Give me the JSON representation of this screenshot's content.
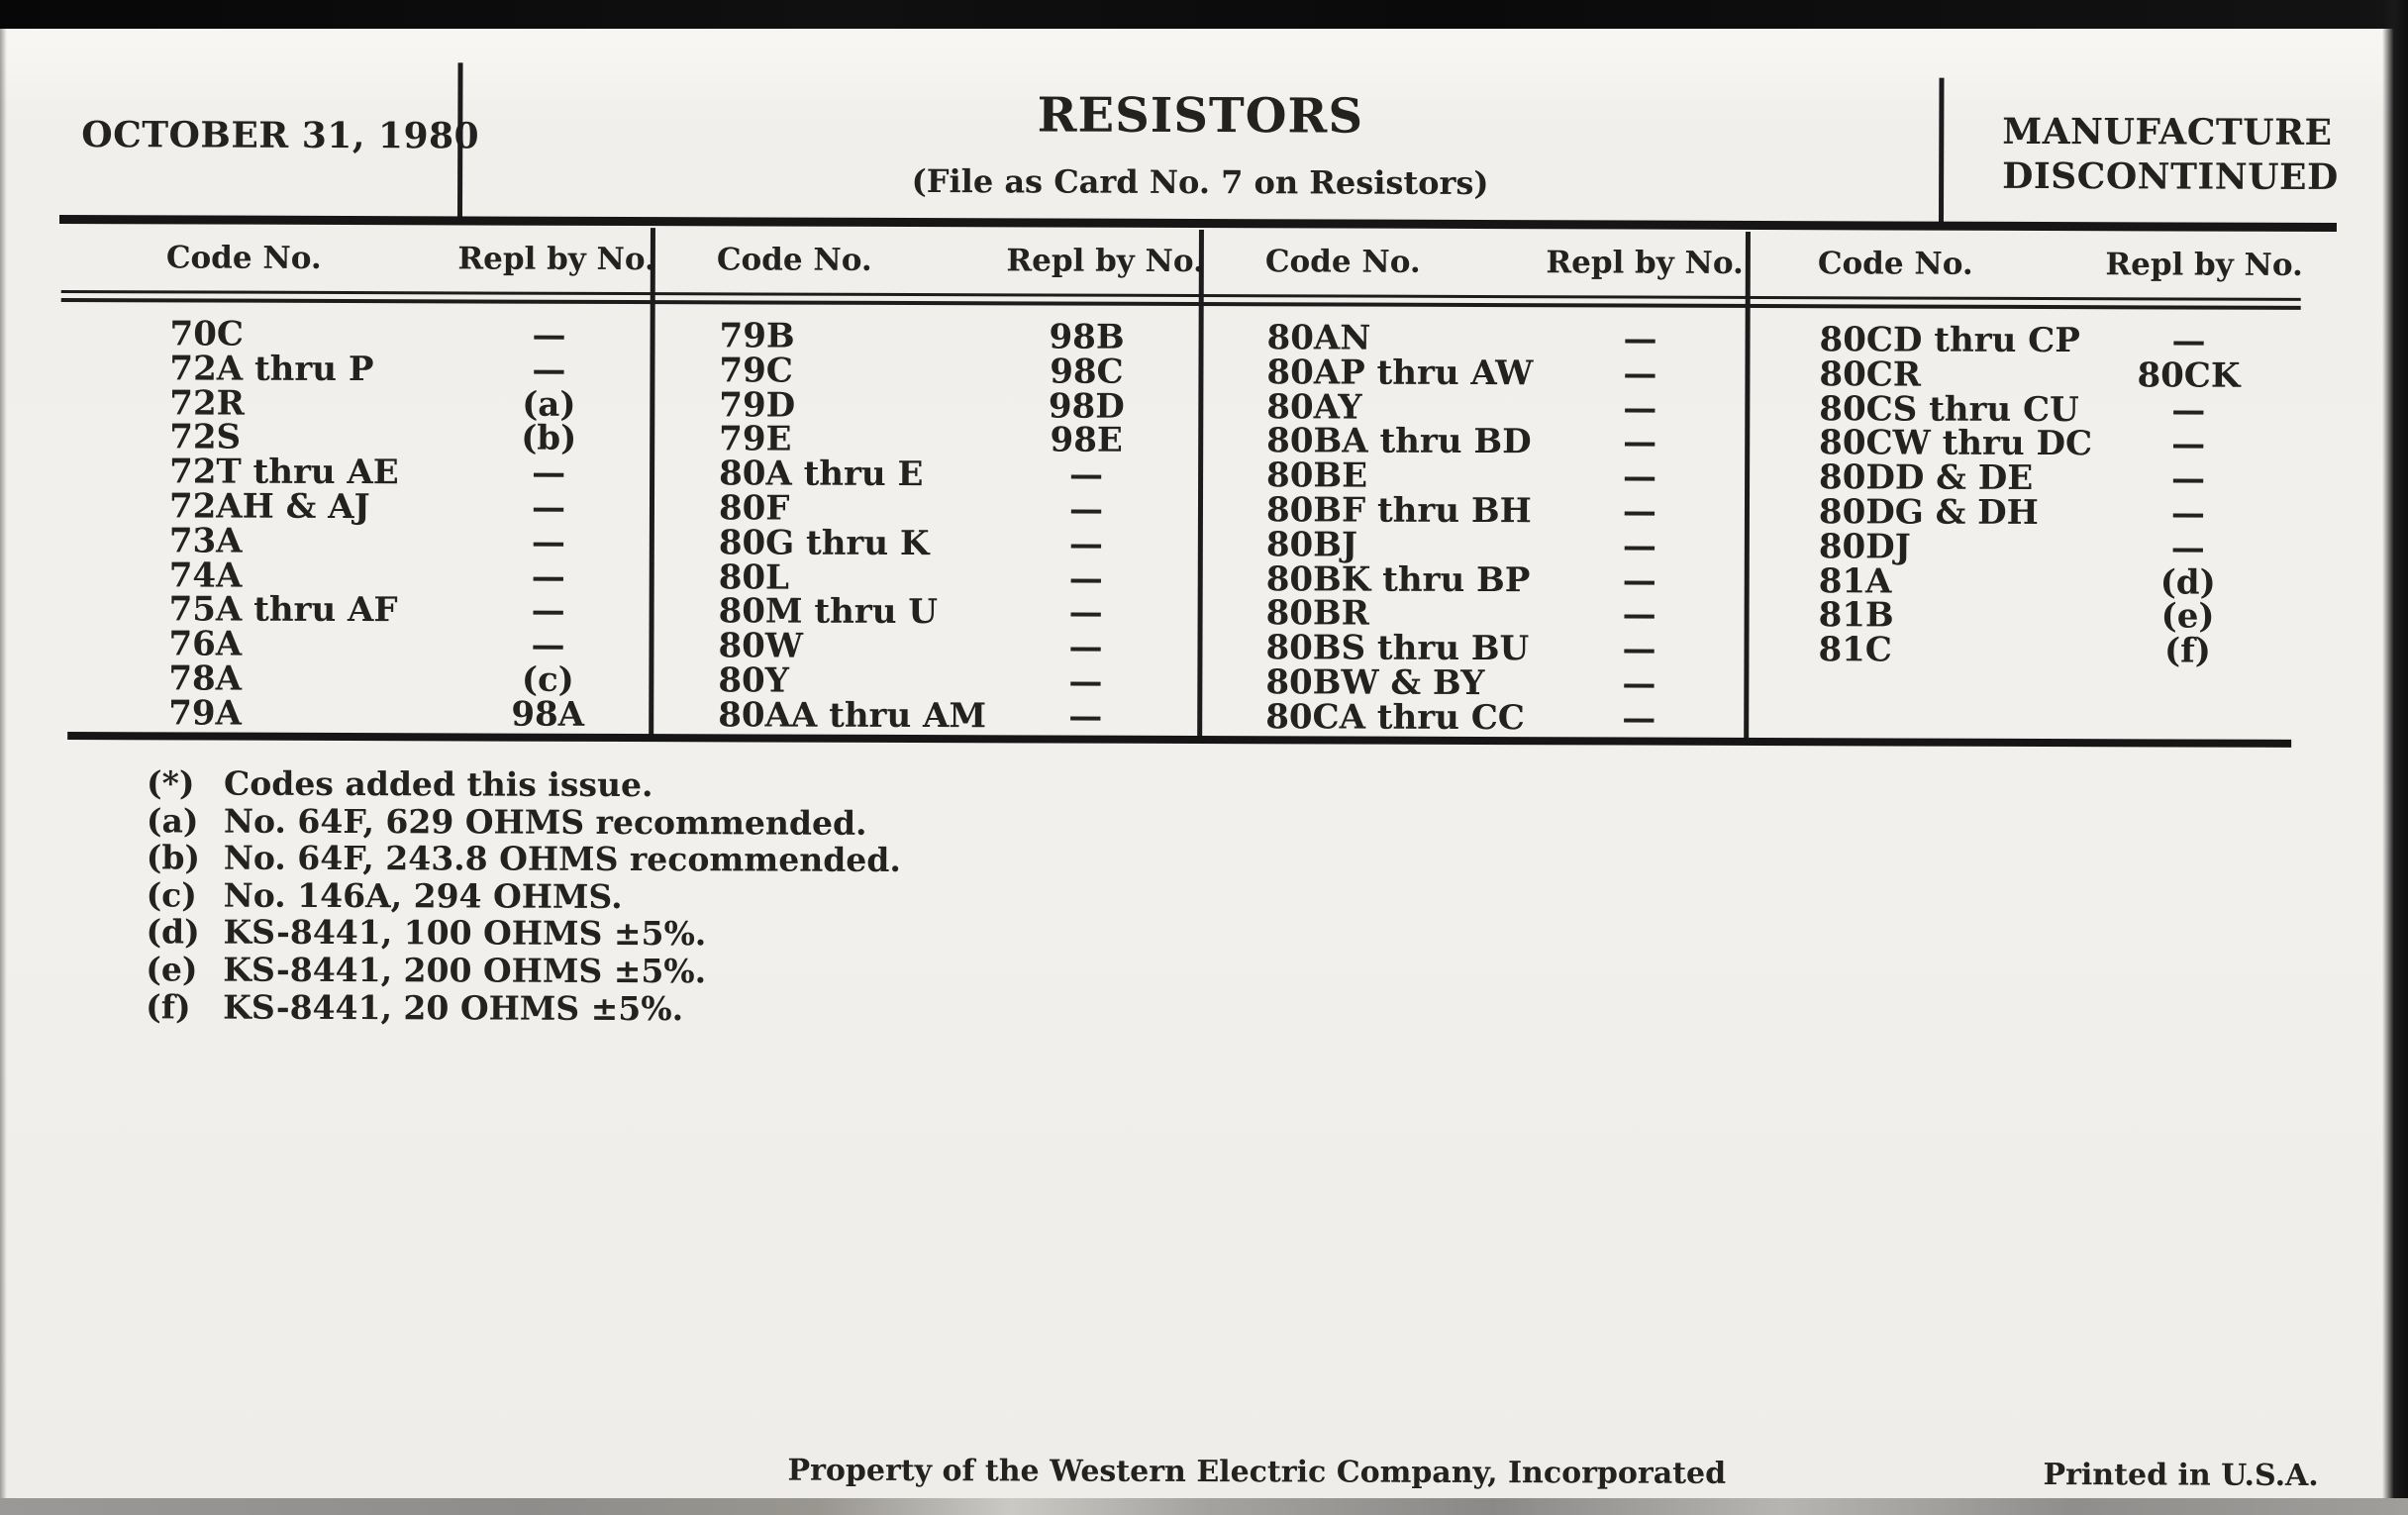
{
  "header": {
    "date": "OCTOBER 31, 1980",
    "title": "RESISTORS",
    "subtitle": "(File as Card No. 7 on Resistors)",
    "status_line1": "MANUFACTURE",
    "status_line2": "DISCONTINUED"
  },
  "table": {
    "col_headers": {
      "code": "Code No.",
      "repl": "Repl by No."
    },
    "groups": [
      {
        "rows": [
          {
            "code": "70C",
            "repl": "—"
          },
          {
            "code": "72A thru P",
            "repl": "—"
          },
          {
            "code": "72R",
            "repl": "(a)"
          },
          {
            "code": "72S",
            "repl": "(b)"
          },
          {
            "code": "72T thru AE",
            "repl": "—"
          },
          {
            "code": "72AH & AJ",
            "repl": "—"
          },
          {
            "code": "73A",
            "repl": "—"
          },
          {
            "code": "74A",
            "repl": "—"
          },
          {
            "code": "75A thru AF",
            "repl": "—"
          },
          {
            "code": "76A",
            "repl": "—"
          },
          {
            "code": "78A",
            "repl": "(c)"
          },
          {
            "code": "79A",
            "repl": "98A"
          }
        ]
      },
      {
        "rows": [
          {
            "code": "79B",
            "repl": "98B"
          },
          {
            "code": "79C",
            "repl": "98C"
          },
          {
            "code": "79D",
            "repl": "98D"
          },
          {
            "code": "79E",
            "repl": "98E"
          },
          {
            "code": "80A thru E",
            "repl": "—"
          },
          {
            "code": "80F",
            "repl": "—"
          },
          {
            "code": "80G thru K",
            "repl": "—"
          },
          {
            "code": "80L",
            "repl": "—"
          },
          {
            "code": "80M thru U",
            "repl": "—"
          },
          {
            "code": "80W",
            "repl": "—"
          },
          {
            "code": "80Y",
            "repl": "—"
          },
          {
            "code": "80AA thru AM",
            "repl": "—"
          }
        ]
      },
      {
        "rows": [
          {
            "code": "80AN",
            "repl": "—"
          },
          {
            "code": "80AP thru AW",
            "repl": "—"
          },
          {
            "code": "80AY",
            "repl": "—"
          },
          {
            "code": "80BA thru BD",
            "repl": "—"
          },
          {
            "code": "80BE",
            "repl": "—"
          },
          {
            "code": "80BF thru BH",
            "repl": "—"
          },
          {
            "code": "80BJ",
            "repl": "—"
          },
          {
            "code": "80BK thru BP",
            "repl": "—"
          },
          {
            "code": "80BR",
            "repl": "—"
          },
          {
            "code": "80BS thru BU",
            "repl": "—"
          },
          {
            "code": "80BW & BY",
            "repl": "—"
          },
          {
            "code": "80CA thru CC",
            "repl": "—"
          }
        ]
      },
      {
        "rows": [
          {
            "code": "80CD thru CP",
            "repl": "—"
          },
          {
            "code": "80CR",
            "repl": "80CK"
          },
          {
            "code": "80CS thru CU",
            "repl": "—"
          },
          {
            "code": "80CW thru DC",
            "repl": "—"
          },
          {
            "code": "80DD & DE",
            "repl": "—"
          },
          {
            "code": "80DG & DH",
            "repl": "—"
          },
          {
            "code": "80DJ",
            "repl": "—"
          },
          {
            "code": "81A",
            "repl": "(d)"
          },
          {
            "code": "81B",
            "repl": "(e)"
          },
          {
            "code": "81C",
            "repl": "(f)"
          }
        ]
      }
    ]
  },
  "footnotes": [
    {
      "marker": "(*)",
      "text": "Codes added this issue."
    },
    {
      "marker": "(a)",
      "text": "No. 64F, 629 OHMS recommended."
    },
    {
      "marker": "(b)",
      "text": "No. 64F, 243.8 OHMS recommended."
    },
    {
      "marker": "(c)",
      "text": "No. 146A, 294 OHMS."
    },
    {
      "marker": "(d)",
      "text": "KS-8441, 100 OHMS ±5%."
    },
    {
      "marker": "(e)",
      "text": "KS-8441, 200 OHMS ±5%."
    },
    {
      "marker": "(f)",
      "text": "KS-8441, 20 OHMS ±5%."
    }
  ],
  "footer": {
    "property": "Property of the Western Electric Company, Incorporated",
    "printed": "Printed in U.S.A."
  },
  "colors": {
    "paper": "#f2f0ec",
    "ink": "#242220",
    "rule": "#161616",
    "scan_edge": "#0a0a0a"
  }
}
